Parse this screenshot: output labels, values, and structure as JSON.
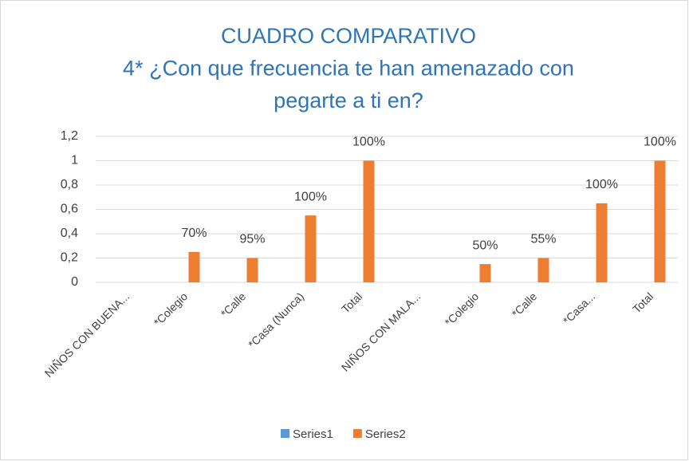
{
  "chart_data": {
    "type": "bar",
    "title": [
      "CUADRO COMPARATIVO",
      "4* ¿Con que frecuencia te han amenazado con",
      "pegarte a ti en?"
    ],
    "categories": [
      "NIÑOS CON BUENA...",
      "*Colegio",
      "*Calle",
      "*Casa (Nunca)",
      "Total",
      "NIÑOS CON MALA...",
      "*Colegio",
      "*Calle",
      "*Casa...",
      "Total"
    ],
    "series": [
      {
        "name": "Series1",
        "color": "#5b9bd5",
        "values": [
          null,
          null,
          null,
          null,
          null,
          null,
          null,
          null,
          null,
          null
        ]
      },
      {
        "name": "Series2",
        "color": "#ed7d31",
        "values": [
          null,
          0.25,
          0.2,
          0.55,
          1,
          null,
          0.15,
          0.2,
          0.65,
          1
        ]
      }
    ],
    "annotations": [
      null,
      "70%",
      "95%",
      "100%",
      "100%",
      null,
      "50%",
      "55%",
      "100%",
      "100%"
    ],
    "ylim": [
      0,
      1.2
    ],
    "yticks": [
      0,
      {
        "value": 0.2,
        "label": "0,2"
      },
      {
        "value": 0.4,
        "label": "0,4"
      },
      {
        "value": 0.6,
        "label": "0,6"
      },
      {
        "value": 0.8,
        "label": "0,8"
      },
      1,
      {
        "value": 1.2,
        "label": "1,2"
      }
    ],
    "grid": true,
    "legend": "bottom"
  }
}
